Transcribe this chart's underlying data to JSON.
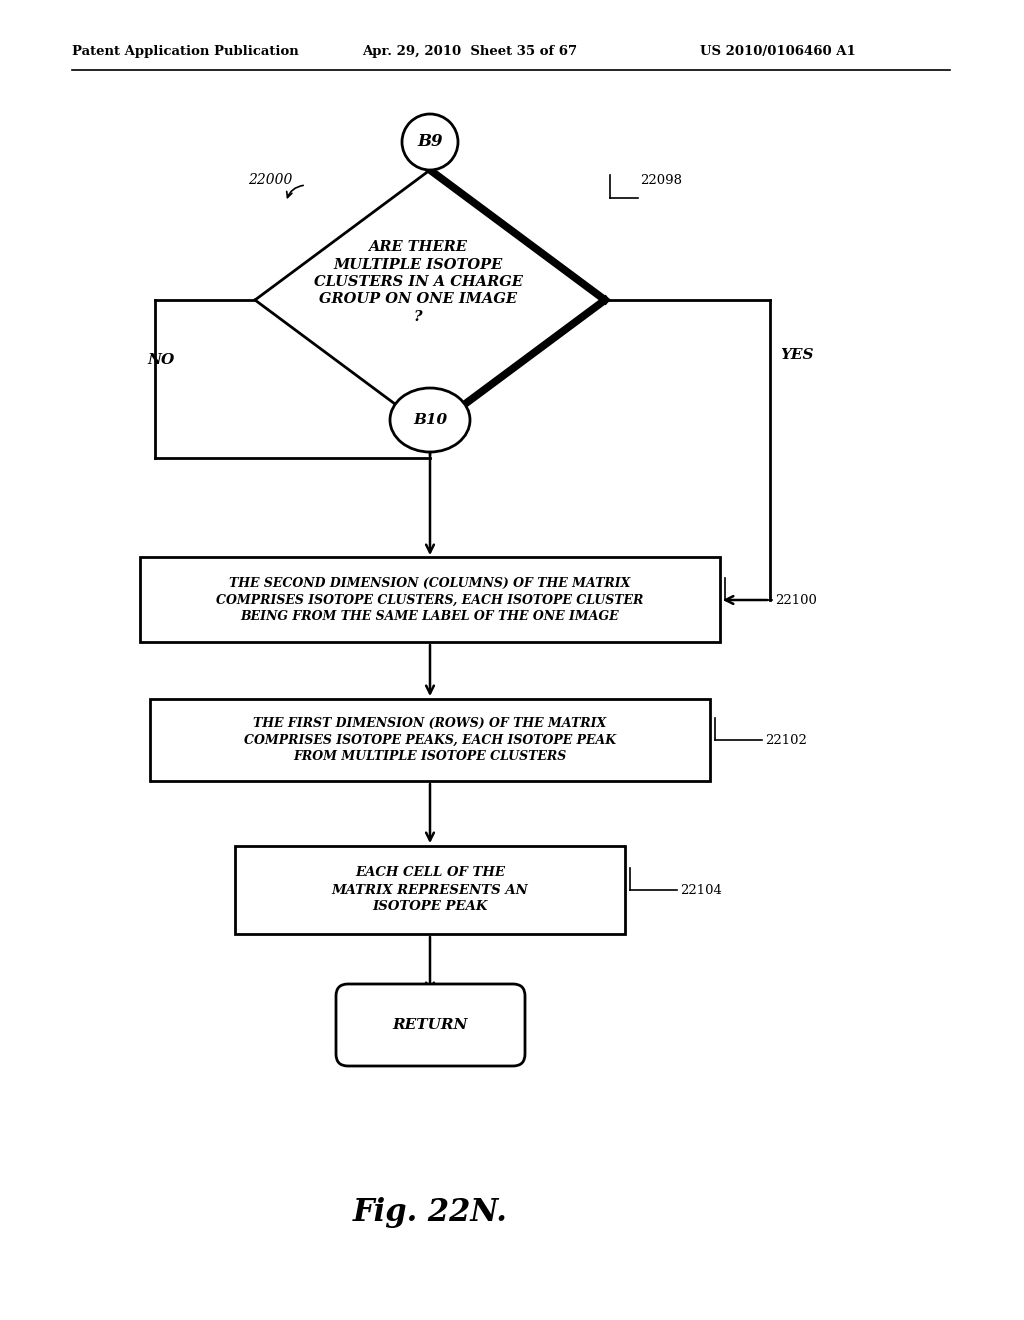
{
  "title_left": "Patent Application Publication",
  "title_mid": "Apr. 29, 2010  Sheet 35 of 67",
  "title_right": "US 2010/0106460 A1",
  "fig_label": "Fig. 22N.",
  "node_b9": "B9",
  "node_b10": "B10",
  "node_return": "RETURN",
  "label_22000": "22000",
  "label_22098": "22098",
  "label_22100": "22100",
  "label_22102": "22102",
  "label_22104": "22104",
  "diamond_text": "ARE THERE\nMULTIPLE ISOTOPE\nCLUSTERS IN A CHARGE\nGROUP ON ONE IMAGE\n?",
  "box1_text": "THE SECOND DIMENSION (COLUMNS) OF THE MATRIX\nCOMPRISES ISOTOPE CLUSTERS, EACH ISOTOPE CLUSTER\nBEING FROM THE SAME LABEL OF THE ONE IMAGE",
  "box2_text": "THE FIRST DIMENSION (ROWS) OF THE MATRIX\nCOMPRISES ISOTOPE PEAKS, EACH ISOTOPE PEAK\nFROM MULTIPLE ISOTOPE CLUSTERS",
  "box3_text": "EACH CELL OF THE\nMATRIX REPRESENTS AN\nISOTOPE PEAK",
  "no_label": "NO",
  "yes_label": "YES",
  "bg_color": "#ffffff"
}
